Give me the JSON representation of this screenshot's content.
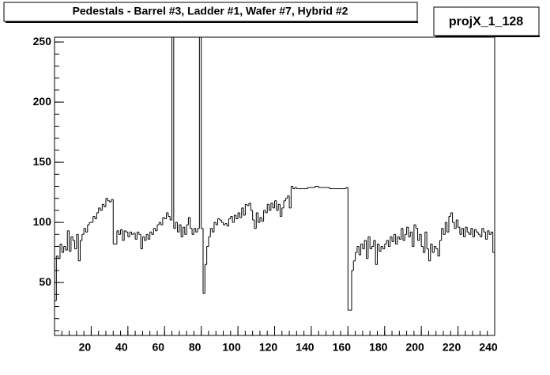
{
  "chart_data": {
    "type": "histogram",
    "title": "Pedestals - Barrel #3, Ladder #1, Wafer #7, Hybrid #2",
    "name": "projX_1_128",
    "color": "#000000",
    "bins": [
      0,
      1,
      2,
      3,
      4,
      5,
      6,
      7,
      8,
      9,
      10,
      11,
      12,
      13,
      14,
      15,
      16,
      17,
      18,
      19,
      20,
      21,
      22,
      23,
      24,
      25,
      26,
      27,
      28,
      29,
      30,
      31,
      32,
      33,
      34,
      35,
      36,
      37,
      38,
      39,
      40,
      41,
      42,
      43,
      44,
      45,
      46,
      47,
      48,
      49,
      50,
      51,
      52,
      53,
      54,
      55,
      56,
      57,
      58,
      59,
      60,
      61,
      62,
      63,
      64,
      65,
      66,
      67,
      68,
      69,
      70,
      71,
      72,
      73,
      74,
      75,
      76,
      77,
      78,
      79,
      80,
      81,
      82,
      83,
      84,
      85,
      86,
      87,
      88,
      89,
      90,
      91,
      92,
      93,
      94,
      95,
      96,
      97,
      98,
      99,
      100,
      101,
      102,
      103,
      104,
      105,
      106,
      107,
      108,
      109,
      110,
      111,
      112,
      113,
      114,
      115,
      116,
      117,
      118,
      119,
      120,
      121,
      122,
      123,
      124,
      125,
      126,
      127,
      128,
      129,
      130,
      131,
      132,
      133,
      134,
      135,
      136,
      137,
      138,
      139,
      140,
      141,
      142,
      143,
      144,
      145,
      146,
      147,
      148,
      149,
      150,
      151,
      152,
      153,
      154,
      155,
      156,
      157,
      158,
      159,
      160,
      161,
      162,
      163,
      164,
      165,
      166,
      167,
      168,
      169,
      170,
      171,
      172,
      173,
      174,
      175,
      176,
      177,
      178,
      179,
      180,
      181,
      182,
      183,
      184,
      185,
      186,
      187,
      188,
      189,
      190,
      191,
      192,
      193,
      194,
      195,
      196,
      197,
      198,
      199,
      200,
      201,
      202,
      203,
      204,
      205,
      206,
      207,
      208,
      209,
      210,
      211,
      212,
      213,
      214,
      215,
      216,
      217,
      218,
      219,
      220,
      221,
      222,
      223,
      224,
      225,
      226,
      227,
      228,
      229,
      230,
      231,
      232,
      233,
      234,
      235,
      236,
      237,
      238,
      239,
      240
    ],
    "values": [
      35,
      72,
      70,
      82,
      75,
      80,
      77,
      93,
      76,
      88,
      85,
      78,
      90,
      68,
      85,
      90,
      95,
      92,
      98,
      100,
      100,
      105,
      103,
      108,
      112,
      110,
      115,
      113,
      120,
      118,
      117,
      119,
      82,
      82,
      93,
      90,
      94,
      85,
      93,
      92,
      88,
      92,
      90,
      91,
      86,
      92,
      90,
      78,
      88,
      85,
      90,
      86,
      92,
      90,
      95,
      93,
      98,
      100,
      98,
      104,
      103,
      108,
      105,
      102,
      260,
      95,
      100,
      92,
      98,
      88,
      96,
      90,
      98,
      104,
      95,
      90,
      95,
      92,
      95,
      260,
      95,
      41,
      65,
      80,
      88,
      95,
      92,
      100,
      98,
      103,
      102,
      100,
      98,
      99,
      97,
      103,
      105,
      100,
      106,
      103,
      108,
      104,
      112,
      106,
      115,
      114,
      116,
      110,
      102,
      95,
      108,
      100,
      104,
      101,
      110,
      108,
      115,
      110,
      116,
      112,
      118,
      110,
      115,
      105,
      112,
      118,
      120,
      122,
      112,
      130,
      128,
      129,
      128,
      128,
      128,
      128,
      128,
      128,
      129,
      129,
      129,
      129,
      130,
      130,
      129,
      129,
      129,
      129,
      129,
      129,
      128,
      128,
      128,
      128,
      128,
      128,
      128,
      128,
      128,
      129,
      27,
      27,
      60,
      68,
      75,
      80,
      73,
      82,
      78,
      85,
      70,
      88,
      78,
      80,
      85,
      65,
      82,
      76,
      80,
      78,
      82,
      85,
      80,
      88,
      84,
      90,
      82,
      88,
      86,
      95,
      85,
      90,
      96,
      88,
      92,
      80,
      98,
      95,
      85,
      90,
      80,
      75,
      92,
      78,
      68,
      82,
      75,
      80,
      78,
      72,
      85,
      95,
      90,
      100,
      92,
      105,
      108,
      100,
      95,
      102,
      96,
      90,
      95,
      88,
      96,
      92,
      90,
      95,
      88,
      94,
      92,
      90,
      88,
      95,
      92,
      86,
      93,
      90,
      92,
      75
    ],
    "xlim": [
      0,
      240
    ],
    "ylim": [
      6,
      254
    ],
    "xticks": [
      20,
      40,
      60,
      80,
      100,
      120,
      140,
      160,
      180,
      200,
      220,
      240
    ],
    "yticks": [
      50,
      100,
      150,
      200,
      250
    ]
  }
}
